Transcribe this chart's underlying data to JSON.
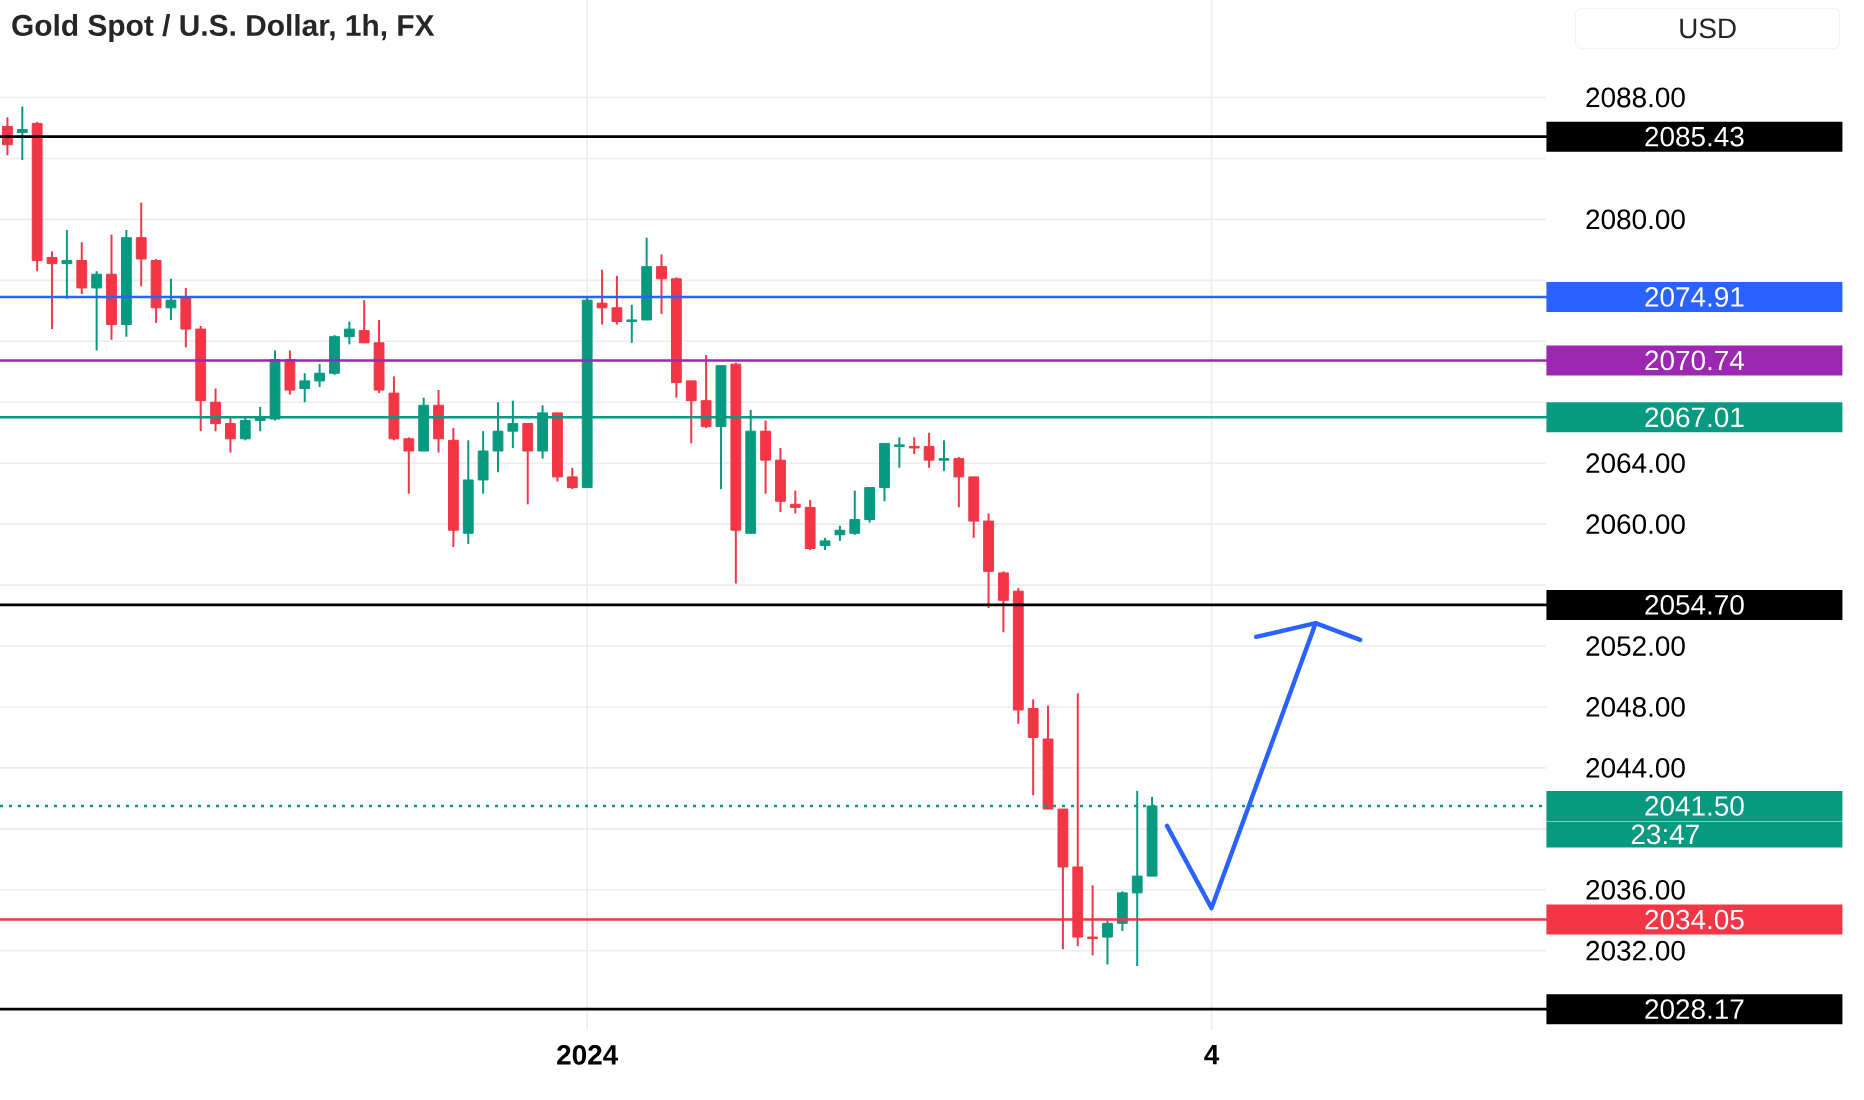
{
  "chart_data": {
    "type": "candlestick",
    "title": "Gold Spot / U.S. Dollar, 1h, FX",
    "categories": [
      null,
      null,
      null,
      null,
      null,
      null,
      null,
      null,
      null,
      null,
      null,
      null,
      null,
      null,
      null,
      null,
      null,
      null,
      null,
      null,
      null,
      null,
      null,
      null,
      null,
      null,
      null,
      null,
      null,
      null,
      null,
      null,
      null,
      null,
      null,
      null,
      null,
      null,
      null,
      "2024",
      null,
      null,
      null,
      null,
      null,
      null,
      null,
      null,
      null,
      null,
      null,
      null,
      null,
      null,
      null,
      null,
      null,
      null,
      null,
      null,
      null,
      null,
      null,
      null,
      null,
      null,
      null,
      null,
      null,
      null,
      null,
      null,
      null,
      null,
      null,
      null,
      null,
      null,
      null,
      null,
      null,
      "4",
      null,
      null,
      null,
      null,
      null,
      null,
      null,
      null,
      null,
      null,
      null,
      null,
      null,
      null,
      null,
      null,
      null,
      null,
      null,
      null,
      null,
      null
    ],
    "ohlc": [
      [
        2086.1,
        2086.7,
        2084.2,
        2084.9
      ],
      [
        2085.7,
        2087.4,
        2083.9,
        2085.9
      ],
      [
        2086.3,
        2086.4,
        2076.6,
        2077.3
      ],
      [
        2077.5,
        2077.9,
        2072.8,
        2077.1
      ],
      [
        2077.1,
        2079.3,
        2074.8,
        2077.3
      ],
      [
        2077.3,
        2078.5,
        2075.1,
        2075.5
      ],
      [
        2075.5,
        2076.6,
        2071.4,
        2076.4
      ],
      [
        2076.4,
        2079.0,
        2072.1,
        2073.1
      ],
      [
        2073.1,
        2079.3,
        2072.3,
        2078.8
      ],
      [
        2078.8,
        2081.1,
        2075.6,
        2077.4
      ],
      [
        2077.3,
        2077.4,
        2073.2,
        2074.2
      ],
      [
        2074.2,
        2076.1,
        2073.4,
        2074.7
      ],
      [
        2074.9,
        2075.5,
        2071.6,
        2072.8
      ],
      [
        2072.8,
        2073.0,
        2066.1,
        2068.1
      ],
      [
        2068.0,
        2068.9,
        2066.1,
        2066.6
      ],
      [
        2066.6,
        2067.0,
        2064.7,
        2065.6
      ],
      [
        2065.6,
        2067.0,
        2065.5,
        2066.8
      ],
      [
        2066.8,
        2067.7,
        2066.1,
        2067.0
      ],
      [
        2066.9,
        2071.4,
        2066.8,
        2070.8
      ],
      [
        2070.8,
        2071.4,
        2068.5,
        2068.8
      ],
      [
        2068.9,
        2069.9,
        2068.0,
        2069.4
      ],
      [
        2069.4,
        2070.5,
        2069.0,
        2069.9
      ],
      [
        2069.9,
        2072.4,
        2069.8,
        2072.3
      ],
      [
        2072.3,
        2073.3,
        2071.8,
        2072.8
      ],
      [
        2072.7,
        2074.7,
        2071.9,
        2071.9
      ],
      [
        2071.9,
        2073.4,
        2068.6,
        2068.8
      ],
      [
        2068.6,
        2069.7,
        2065.5,
        2065.6
      ],
      [
        2065.6,
        2065.7,
        2062.0,
        2064.8
      ],
      [
        2064.8,
        2068.3,
        2064.8,
        2067.8
      ],
      [
        2067.8,
        2068.8,
        2064.7,
        2065.6
      ],
      [
        2065.5,
        2066.3,
        2058.5,
        2059.6
      ],
      [
        2059.4,
        2065.5,
        2058.7,
        2062.9
      ],
      [
        2062.9,
        2066.1,
        2062.0,
        2064.8
      ],
      [
        2064.8,
        2068.0,
        2063.4,
        2066.1
      ],
      [
        2066.1,
        2068.1,
        2065.0,
        2066.6
      ],
      [
        2066.6,
        2066.6,
        2061.3,
        2064.8
      ],
      [
        2064.8,
        2067.8,
        2064.3,
        2067.3
      ],
      [
        2067.3,
        2067.3,
        2062.8,
        2063.1
      ],
      [
        2063.1,
        2063.7,
        2062.3,
        2062.4
      ],
      [
        2062.4,
        2074.9,
        2062.4,
        2074.7
      ],
      [
        2074.5,
        2076.7,
        2073.1,
        2074.2
      ],
      [
        2074.2,
        2076.3,
        2073.1,
        2073.3
      ],
      [
        2073.3,
        2074.4,
        2071.9,
        2073.4
      ],
      [
        2073.4,
        2078.8,
        2073.4,
        2076.9
      ],
      [
        2076.9,
        2077.7,
        2073.8,
        2076.1
      ],
      [
        2076.1,
        2076.2,
        2068.3,
        2069.3
      ],
      [
        2069.4,
        2069.4,
        2065.3,
        2068.1
      ],
      [
        2068.1,
        2071.1,
        2066.3,
        2066.4
      ],
      [
        2066.4,
        2070.4,
        2062.3,
        2070.4
      ],
      [
        2070.5,
        2070.6,
        2056.1,
        2059.6
      ],
      [
        2059.4,
        2067.5,
        2059.4,
        2066.1
      ],
      [
        2066.1,
        2066.8,
        2062.0,
        2064.2
      ],
      [
        2064.2,
        2065.0,
        2060.8,
        2061.5
      ],
      [
        2061.3,
        2062.2,
        2060.7,
        2061.1
      ],
      [
        2061.1,
        2061.6,
        2058.3,
        2058.4
      ],
      [
        2058.6,
        2059.1,
        2058.3,
        2058.9
      ],
      [
        2059.3,
        2059.9,
        2058.9,
        2059.6
      ],
      [
        2059.4,
        2062.2,
        2059.3,
        2060.3
      ],
      [
        2060.3,
        2062.4,
        2060.1,
        2062.4
      ],
      [
        2062.4,
        2065.3,
        2061.5,
        2065.3
      ],
      [
        2065.1,
        2065.7,
        2063.7,
        2065.2
      ],
      [
        2065.1,
        2065.7,
        2064.6,
        2065.0
      ],
      [
        2065.1,
        2066.0,
        2063.7,
        2064.2
      ],
      [
        2064.2,
        2065.5,
        2063.5,
        2064.3
      ],
      [
        2064.3,
        2064.4,
        2061.1,
        2063.1
      ],
      [
        2063.1,
        2063.1,
        2059.1,
        2060.2
      ],
      [
        2060.2,
        2060.7,
        2054.5,
        2056.9
      ],
      [
        2056.8,
        2056.9,
        2052.9,
        2055.0
      ],
      [
        2055.6,
        2055.8,
        2046.9,
        2047.8
      ],
      [
        2047.9,
        2048.5,
        2042.2,
        2046.0
      ],
      [
        2045.9,
        2048.1,
        2041.3,
        2041.3
      ],
      [
        2041.3,
        2041.3,
        2032.1,
        2037.5
      ],
      [
        2037.5,
        2048.9,
        2032.3,
        2032.9
      ],
      [
        2032.9,
        2036.3,
        2031.7,
        2032.8
      ],
      [
        2032.9,
        2034.0,
        2031.1,
        2033.8
      ],
      [
        2033.8,
        2035.9,
        2033.3,
        2035.8
      ],
      [
        2035.8,
        2042.5,
        2031.0,
        2036.9
      ],
      [
        2036.9,
        2042.1,
        2036.9,
        2041.5
      ],
      null,
      null,
      null,
      null,
      null,
      null,
      null,
      null,
      null,
      null,
      null,
      null,
      null,
      null,
      null,
      null,
      null,
      null,
      null,
      null,
      null,
      null,
      null,
      null,
      null,
      null
    ],
    "colors": [
      "#f23645",
      "#089981",
      "#f23645",
      "#f23645",
      "#089981",
      "#f23645",
      "#089981",
      "#f23645",
      "#089981",
      "#f23645",
      "#f23645",
      "#089981",
      "#f23645",
      "#f23645",
      "#f23645",
      "#f23645",
      "#089981",
      "#089981",
      "#089981",
      "#f23645",
      "#089981",
      "#089981",
      "#089981",
      "#089981",
      "#f23645",
      "#f23645",
      "#f23645",
      "#f23645",
      "#089981",
      "#f23645",
      "#f23645",
      "#089981",
      "#089981",
      "#089981",
      "#089981",
      "#f23645",
      "#089981",
      "#f23645",
      "#f23645",
      "#089981",
      "#f23645",
      "#f23645",
      "#089981",
      "#089981",
      "#f23645",
      "#f23645",
      "#f23645",
      "#f23645",
      "#089981",
      "#f23645",
      "#089981",
      "#f23645",
      "#f23645",
      "#f23645",
      "#f23645",
      "#089981",
      "#089981",
      "#089981",
      "#089981",
      "#089981",
      "#089981",
      "#f23645",
      "#f23645",
      "#089981",
      "#f23645",
      "#f23645",
      "#f23645",
      "#f23645",
      "#f23645",
      "#f23645",
      "#f23645",
      "#f23645",
      "#f23645",
      "#f23645",
      "#089981",
      "#089981",
      "#089981",
      "#089981",
      null,
      null,
      null,
      null,
      null,
      null,
      null,
      null,
      null,
      null,
      null,
      null,
      null,
      null,
      null,
      null,
      null,
      null,
      null,
      null,
      null,
      null,
      null,
      null,
      null,
      null
    ],
    "series": [
      {
        "type": "line",
        "color": "#2962ff",
        "values": [
          null,
          null,
          null,
          null,
          null,
          null,
          null,
          null,
          null,
          null,
          null,
          null,
          null,
          null,
          null,
          null,
          null,
          null,
          null,
          null,
          null,
          null,
          null,
          null,
          null,
          null,
          null,
          null,
          null,
          null,
          null,
          null,
          null,
          null,
          null,
          null,
          null,
          null,
          null,
          null,
          null,
          null,
          null,
          null,
          null,
          null,
          null,
          null,
          null,
          null,
          null,
          null,
          null,
          null,
          null,
          null,
          null,
          null,
          null,
          null,
          null,
          null,
          null,
          null,
          null,
          null,
          null,
          null,
          null,
          null,
          null,
          null,
          null,
          null,
          null,
          null,
          null,
          null,
          2040.2,
          null,
          null,
          2034.8,
          null,
          null,
          null,
          null,
          null,
          null,
          2053.5,
          null,
          null,
          null,
          null,
          null,
          null,
          null,
          null,
          null,
          null,
          null,
          null,
          null,
          null,
          null
        ]
      },
      {
        "type": "line",
        "color": "#2962ff",
        "values": [
          null,
          null,
          null,
          null,
          null,
          null,
          null,
          null,
          null,
          null,
          null,
          null,
          null,
          null,
          null,
          null,
          null,
          null,
          null,
          null,
          null,
          null,
          null,
          null,
          null,
          null,
          null,
          null,
          null,
          null,
          null,
          null,
          null,
          null,
          null,
          null,
          null,
          null,
          null,
          null,
          null,
          null,
          null,
          null,
          null,
          null,
          null,
          null,
          null,
          null,
          null,
          null,
          null,
          null,
          null,
          null,
          null,
          null,
          null,
          null,
          null,
          null,
          null,
          null,
          null,
          null,
          null,
          null,
          null,
          null,
          null,
          null,
          null,
          null,
          null,
          null,
          null,
          null,
          null,
          null,
          null,
          null,
          null,
          null,
          2052.6,
          null,
          null,
          null,
          2053.5,
          null,
          null,
          2052.4,
          null,
          null,
          null,
          null,
          null,
          null,
          null,
          null,
          null,
          null,
          null,
          null
        ]
      }
    ],
    "ylim": [
      2026.8,
      2094.4
    ],
    "yticks": [
      {
        "value": 2032,
        "label": "2032.00"
      },
      {
        "value": 2036,
        "label": "2036.00"
      },
      {
        "value": 2040,
        "label": null
      },
      {
        "value": 2044,
        "label": "2044.00"
      },
      {
        "value": 2048,
        "label": "2048.00"
      },
      {
        "value": 2052,
        "label": "2052.00"
      },
      {
        "value": 2056,
        "label": null
      },
      {
        "value": 2060,
        "label": "2060.00"
      },
      {
        "value": 2064,
        "label": "2064.00"
      },
      {
        "value": 2068,
        "label": null
      },
      {
        "value": 2072,
        "label": null
      },
      {
        "value": 2076,
        "label": null
      },
      {
        "value": 2080,
        "label": "2080.00"
      },
      {
        "value": 2084,
        "label": null
      },
      {
        "value": 2088,
        "label": "2088.00"
      }
    ],
    "grid": true,
    "ref_lines": [
      {
        "axis": "y",
        "value": 2085.43,
        "label": "2085.43",
        "color": "#000000"
      },
      {
        "axis": "y",
        "value": 2074.91,
        "label": "2074.91",
        "color": "#2962ff"
      },
      {
        "axis": "y",
        "value": 2070.74,
        "label": "2070.74",
        "color": "#9c27b0"
      },
      {
        "axis": "y",
        "value": 2067.01,
        "label": "2067.01",
        "color": "#089981"
      },
      {
        "axis": "y",
        "value": 2054.7,
        "label": "2054.70",
        "color": "#000000"
      },
      {
        "axis": "y",
        "value": 2041.5,
        "label": "2041.50",
        "color": "#089981",
        "line_style": "dotted"
      },
      {
        "axis": "y",
        "value": 2034.05,
        "label": "2034.05",
        "color": "#f23645"
      },
      {
        "axis": "y",
        "value": 2028.17,
        "label": "2028.17",
        "color": "#000000"
      }
    ],
    "annotations": [
      "USD",
      "23:47"
    ]
  }
}
